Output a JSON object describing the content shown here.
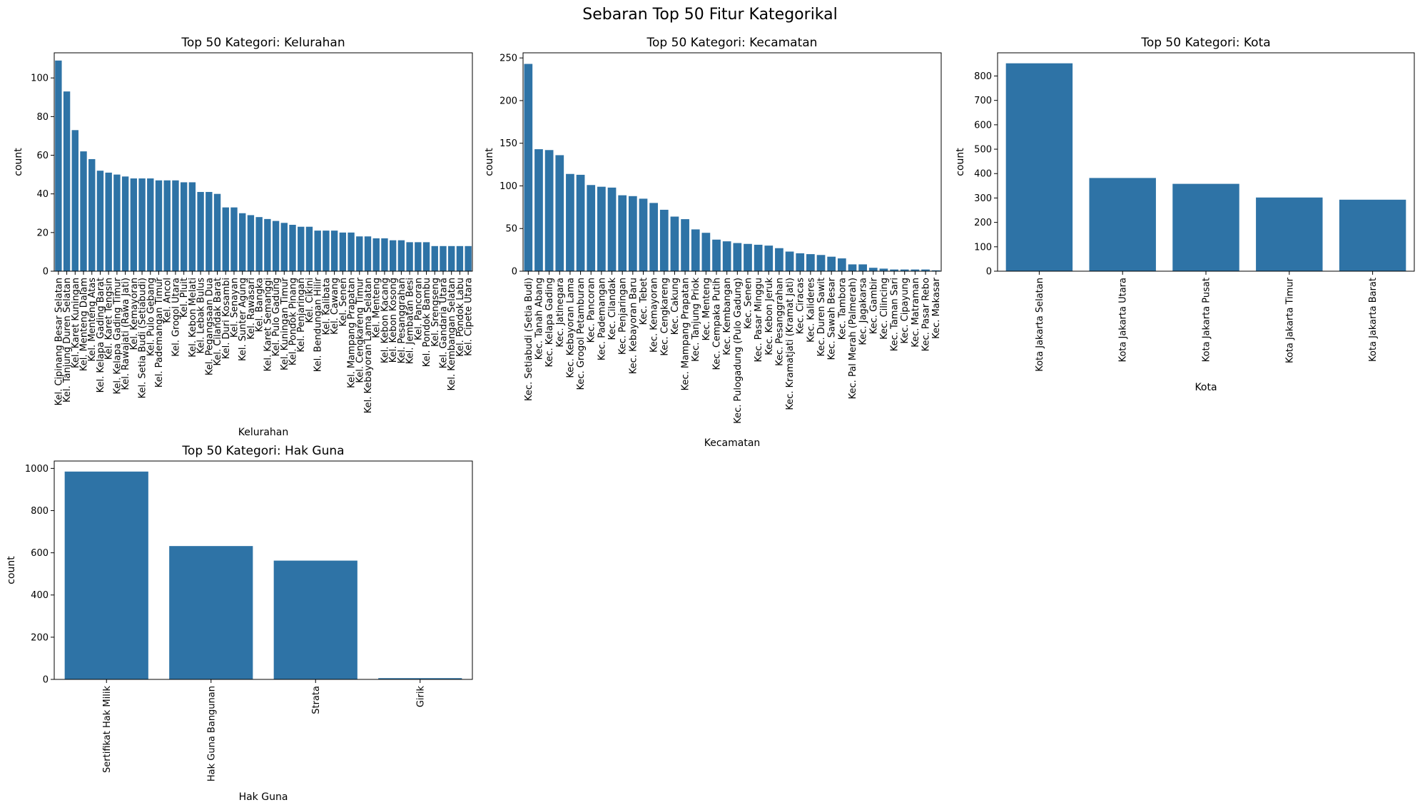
{
  "figure": {
    "title": "Sebaran Top 50 Fitur Kategorikal",
    "bar_color": "#2e73a6"
  },
  "chart_data": [
    {
      "type": "bar",
      "title": "Top 50 Kategori: Kelurahan",
      "xlabel": "Kelurahan",
      "ylabel": "count",
      "ylim": [
        0,
        113
      ],
      "yticks": [
        0,
        20,
        40,
        60,
        80,
        100
      ],
      "categories": [
        "Kel. Cipinang Besar Selatan",
        "Kel. Tanjung Duren Selatan",
        "Kel. Karet Kuningan",
        "Kel. Menteng Dalam",
        "Kel. Menteng Atas",
        "Kel. Kelapa Gading Barat",
        "Kel. Karet Tengsin",
        "Kel. Kelapa Gading Timur",
        "Kel. Rawajati (Rawa Jati)",
        "Kel. Kemayoran",
        "Kel. Setia Budi (Setiabudi)",
        "Kel. Pulo Gebang",
        "Kel. Pademangan Timur",
        "Kel. Ancol",
        "Kel. Grogol Utara",
        "Kel. Pluit",
        "Kel. Kebon Melati",
        "Kel. Lebak Bulus",
        "Kel. Pegangsaan Dua",
        "Kel. Cilandak Barat",
        "Kel. Duri Kosambi",
        "Kel. Senayan",
        "Kel. Sunter Agung",
        "Kel. Rawasari",
        "Kel. Bangka",
        "Kel. Karet Semanggi",
        "Kel. Pulo Gadung",
        "Kel. Kuningan Timur",
        "Kel. Pondok Pinang",
        "Kel. Penjaringan",
        "Kel. Cikini",
        "Kel. Bendungan Hilir",
        "Kel. Kalibata",
        "Kel. Cawang",
        "Kel. Senen",
        "Kel. Mampang Prapatan",
        "Kel. Cengkareng Timur",
        "Kel. Kebayoran Lama Selatan",
        "Kel. Menteng",
        "Kel. Kebon Kacang",
        "Kel. Kebon Kosong",
        "Kel. Pesanggrahan",
        "Kel. Jembatan Besi",
        "Kel. Pancoran",
        "Kel. Pondok Bambu",
        "Kel. Srengseng",
        "Kel. Gandaria Utara",
        "Kel. Kembangan Selatan",
        "Kel. Pondok Labu",
        "Kel. Cipete Utara"
      ],
      "values": [
        109,
        93,
        73,
        62,
        58,
        52,
        51,
        50,
        49,
        48,
        48,
        48,
        47,
        47,
        47,
        46,
        46,
        41,
        41,
        40,
        33,
        33,
        30,
        29,
        28,
        27,
        26,
        25,
        24,
        23,
        23,
        21,
        21,
        21,
        20,
        20,
        18,
        18,
        17,
        17,
        16,
        16,
        15,
        15,
        15,
        13,
        13,
        13,
        13,
        13
      ]
    },
    {
      "type": "bar",
      "title": "Top 50 Kategori: Kecamatan",
      "xlabel": "Kecamatan",
      "ylabel": "count",
      "ylim": [
        0,
        256
      ],
      "yticks": [
        0,
        50,
        100,
        150,
        200,
        250
      ],
      "categories": [
        "Kec. Setiabudi (Setia Budi)",
        "Kec. Tanah Abang",
        "Kec. Kelapa Gading",
        "Kec. Jatinegara",
        "Kec. Kebayoran Lama",
        "Kec. Grogol Petamburan",
        "Kec. Pancoran",
        "Kec. Pademangan",
        "Kec. Cilandak",
        "Kec. Penjaringan",
        "Kec. Kebayoran Baru",
        "Kec. Tebet",
        "Kec. Kemayoran",
        "Kec. Cengkareng",
        "Kec. Cakung",
        "Kec. Mampang Prapatan",
        "Kec. Tanjung Priok",
        "Kec. Menteng",
        "Kec. Cempaka Putih",
        "Kec. Kembangan",
        "Kec. Pulogadung (Pulo Gadung)",
        "Kec. Senen",
        "Kec. Pasar Minggu",
        "Kec. Kebon Jeruk",
        "Kec. Pesanggrahan",
        "Kec. Kramatjati (Kramat Jati)",
        "Kec. Ciracas",
        "Kec. Kalideres",
        "Kec. Duren Sawit",
        "Kec. Sawah Besar",
        "Kec. Tambora",
        "Kec. Pal Merah (Palmerah)",
        "Kec. Jagakarsa",
        "Kec. Gambir",
        "Kec. Cilincing",
        "Kec. Taman Sari",
        "Kec. Cipayung",
        "Kec. Matraman",
        "Kec. Pasar Rebo",
        "Kec. Makasar"
      ],
      "values": [
        243,
        143,
        142,
        136,
        114,
        113,
        101,
        99,
        98,
        89,
        88,
        85,
        80,
        72,
        64,
        61,
        49,
        45,
        37,
        35,
        33,
        32,
        31,
        30,
        27,
        23,
        21,
        20,
        19,
        17,
        15,
        8,
        8,
        4,
        3,
        2,
        2,
        2,
        2,
        1
      ]
    },
    {
      "type": "bar",
      "title": "Top 50 Kategori: Kota",
      "xlabel": "Kota",
      "ylabel": "count",
      "ylim": [
        0,
        895
      ],
      "yticks": [
        0,
        100,
        200,
        300,
        400,
        500,
        600,
        700,
        800
      ],
      "categories": [
        "Kota Jakarta Selatan",
        "Kota Jakarta Utara",
        "Kota Jakarta Pusat",
        "Kota Jakarta Timur",
        "Kota Jakarta Barat"
      ],
      "values": [
        852,
        382,
        358,
        302,
        293
      ]
    },
    {
      "type": "bar",
      "title": "Top 50 Kategori: Hak Guna",
      "xlabel": "Hak Guna",
      "ylabel": "count",
      "ylim": [
        0,
        1035
      ],
      "yticks": [
        0,
        200,
        400,
        600,
        800,
        1000
      ],
      "categories": [
        "Sertifikat Hak Milik",
        "Hak Guna Bangunan",
        "Strata",
        "Girik"
      ],
      "values": [
        985,
        632,
        563,
        6
      ]
    }
  ]
}
